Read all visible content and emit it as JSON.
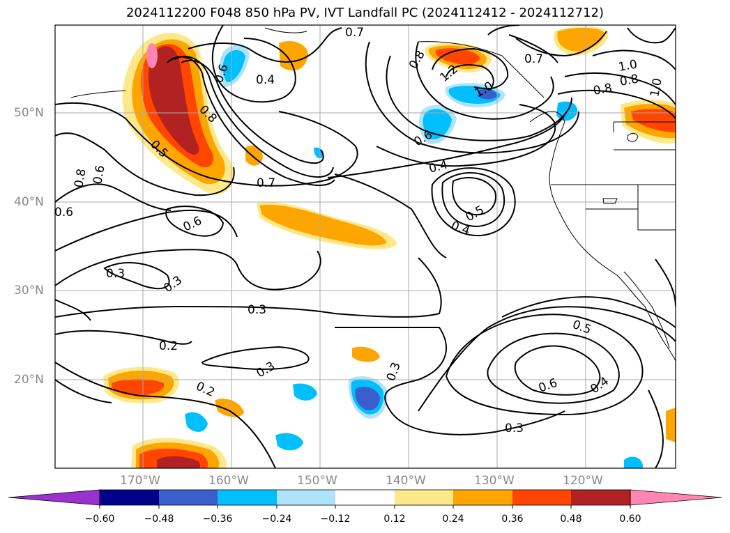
{
  "title": "2024112200 F048 850 hPa PV, IVT Landfall PC (2024112412 - 2024112712)",
  "lat_labels": [
    "50°N",
    "40°N",
    "30°N",
    "20°N"
  ],
  "lon_labels": [
    "170°W",
    "160°W",
    "150°W",
    "140°W",
    "130°W",
    "120°W"
  ],
  "contour_labels": [
    "0.7",
    "0.8",
    "0.6",
    "0.7",
    "0.4",
    "0.8",
    "1.2",
    "1.0",
    "0.6",
    "0.6",
    "1.0",
    "0.8",
    "1.0",
    "0.8",
    "0.5",
    "0.6",
    "0.7",
    "0.4",
    "0.6",
    "0.5",
    "0.4",
    "0.3",
    "0.3",
    "0.3",
    "0.2",
    "0.2",
    "0.3",
    "0.3",
    "0.5",
    "0.6",
    "0.4",
    "0.3",
    "0.8"
  ],
  "colorbar": {
    "ticks": [
      "−0.60",
      "−0.48",
      "−0.36",
      "−0.24",
      "−0.12",
      "0.12",
      "0.24",
      "0.36",
      "0.48",
      "0.60"
    ],
    "colors": [
      "#9932cc",
      "#00008b",
      "#3a5fcd",
      "#00bfff",
      "#aee3fa",
      "#ffffff",
      "#fde98a",
      "#ffa500",
      "#ff4500",
      "#b22222",
      "#ff85b3"
    ]
  }
}
